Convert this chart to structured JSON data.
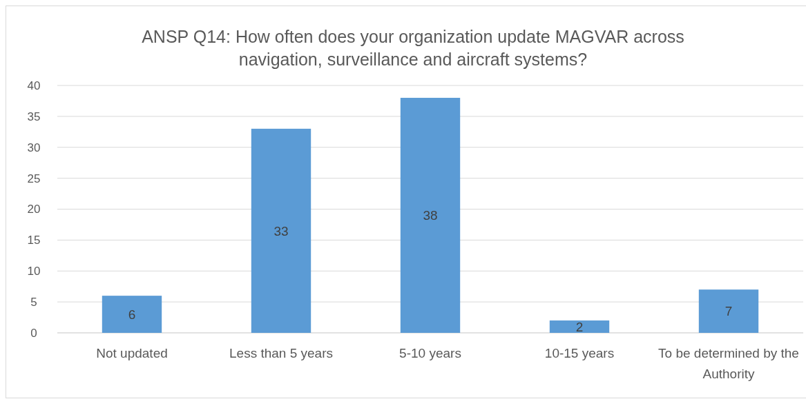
{
  "chart_data": {
    "type": "bar",
    "title": "ANSP Q14: How often does your organization update MAGVAR across navigation, surveillance and aircraft systems?",
    "categories": [
      "Not updated",
      "Less than 5 years",
      "5-10 years",
      "10-15 years",
      "To be determined by the Authority"
    ],
    "values": [
      6,
      33,
      38,
      2,
      7
    ],
    "color": "#5b9bd5",
    "ylim": [
      0,
      40
    ],
    "yticks": [
      0,
      5,
      10,
      15,
      20,
      25,
      30,
      35,
      40
    ],
    "grid": "y",
    "data_labels": true
  }
}
